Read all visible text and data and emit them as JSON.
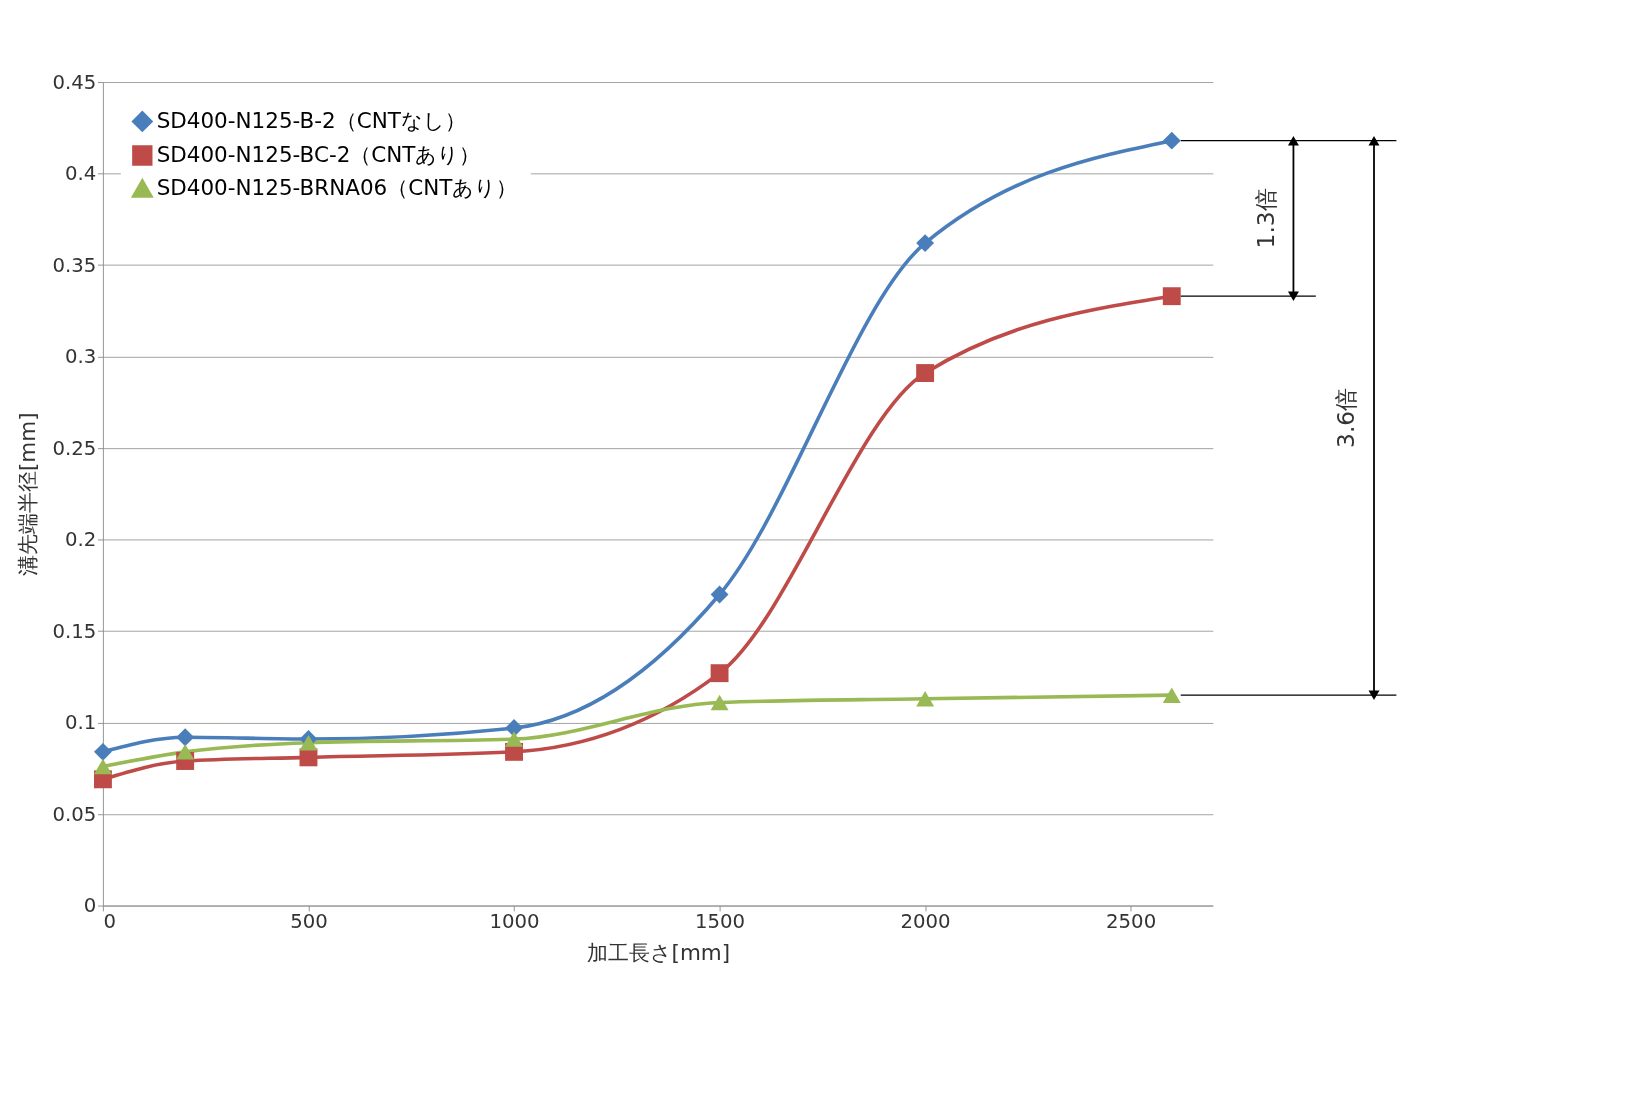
{
  "chart_data": {
    "type": "line",
    "xlabel": "加工長さ[mm]",
    "ylabel": "溝先端半径[mm]",
    "x": [
      0,
      200,
      500,
      1000,
      1500,
      2000,
      2600
    ],
    "series": [
      {
        "name": "SD400-N125-B-2（CNTなし）",
        "color": "#4a7ebb",
        "marker": "diamond",
        "values": [
          0.084,
          0.092,
          0.091,
          0.097,
          0.17,
          0.362,
          0.418
        ]
      },
      {
        "name": "SD400-N125-BC-2（CNTあり）",
        "color": "#be4b48",
        "marker": "square",
        "values": [
          0.069,
          0.079,
          0.081,
          0.084,
          0.127,
          0.291,
          0.333
        ]
      },
      {
        "name": "SD400-N125-BRNA06（CNTあり）",
        "color": "#98b954",
        "marker": "triangle",
        "values": [
          0.076,
          0.084,
          0.089,
          0.091,
          0.111,
          0.113,
          0.115
        ]
      }
    ],
    "xlim": [
      0,
      2700
    ],
    "xticks": [
      0,
      500,
      1000,
      1500,
      2000,
      2500
    ],
    "ylim": [
      0,
      0.45
    ],
    "yticks": [
      0,
      0.05,
      0.1,
      0.15,
      0.2,
      0.25,
      0.3,
      0.35,
      0.4,
      0.45
    ],
    "grid": "y",
    "legend": "top left",
    "annotations": [
      "1.3倍",
      "3.6倍"
    ]
  }
}
